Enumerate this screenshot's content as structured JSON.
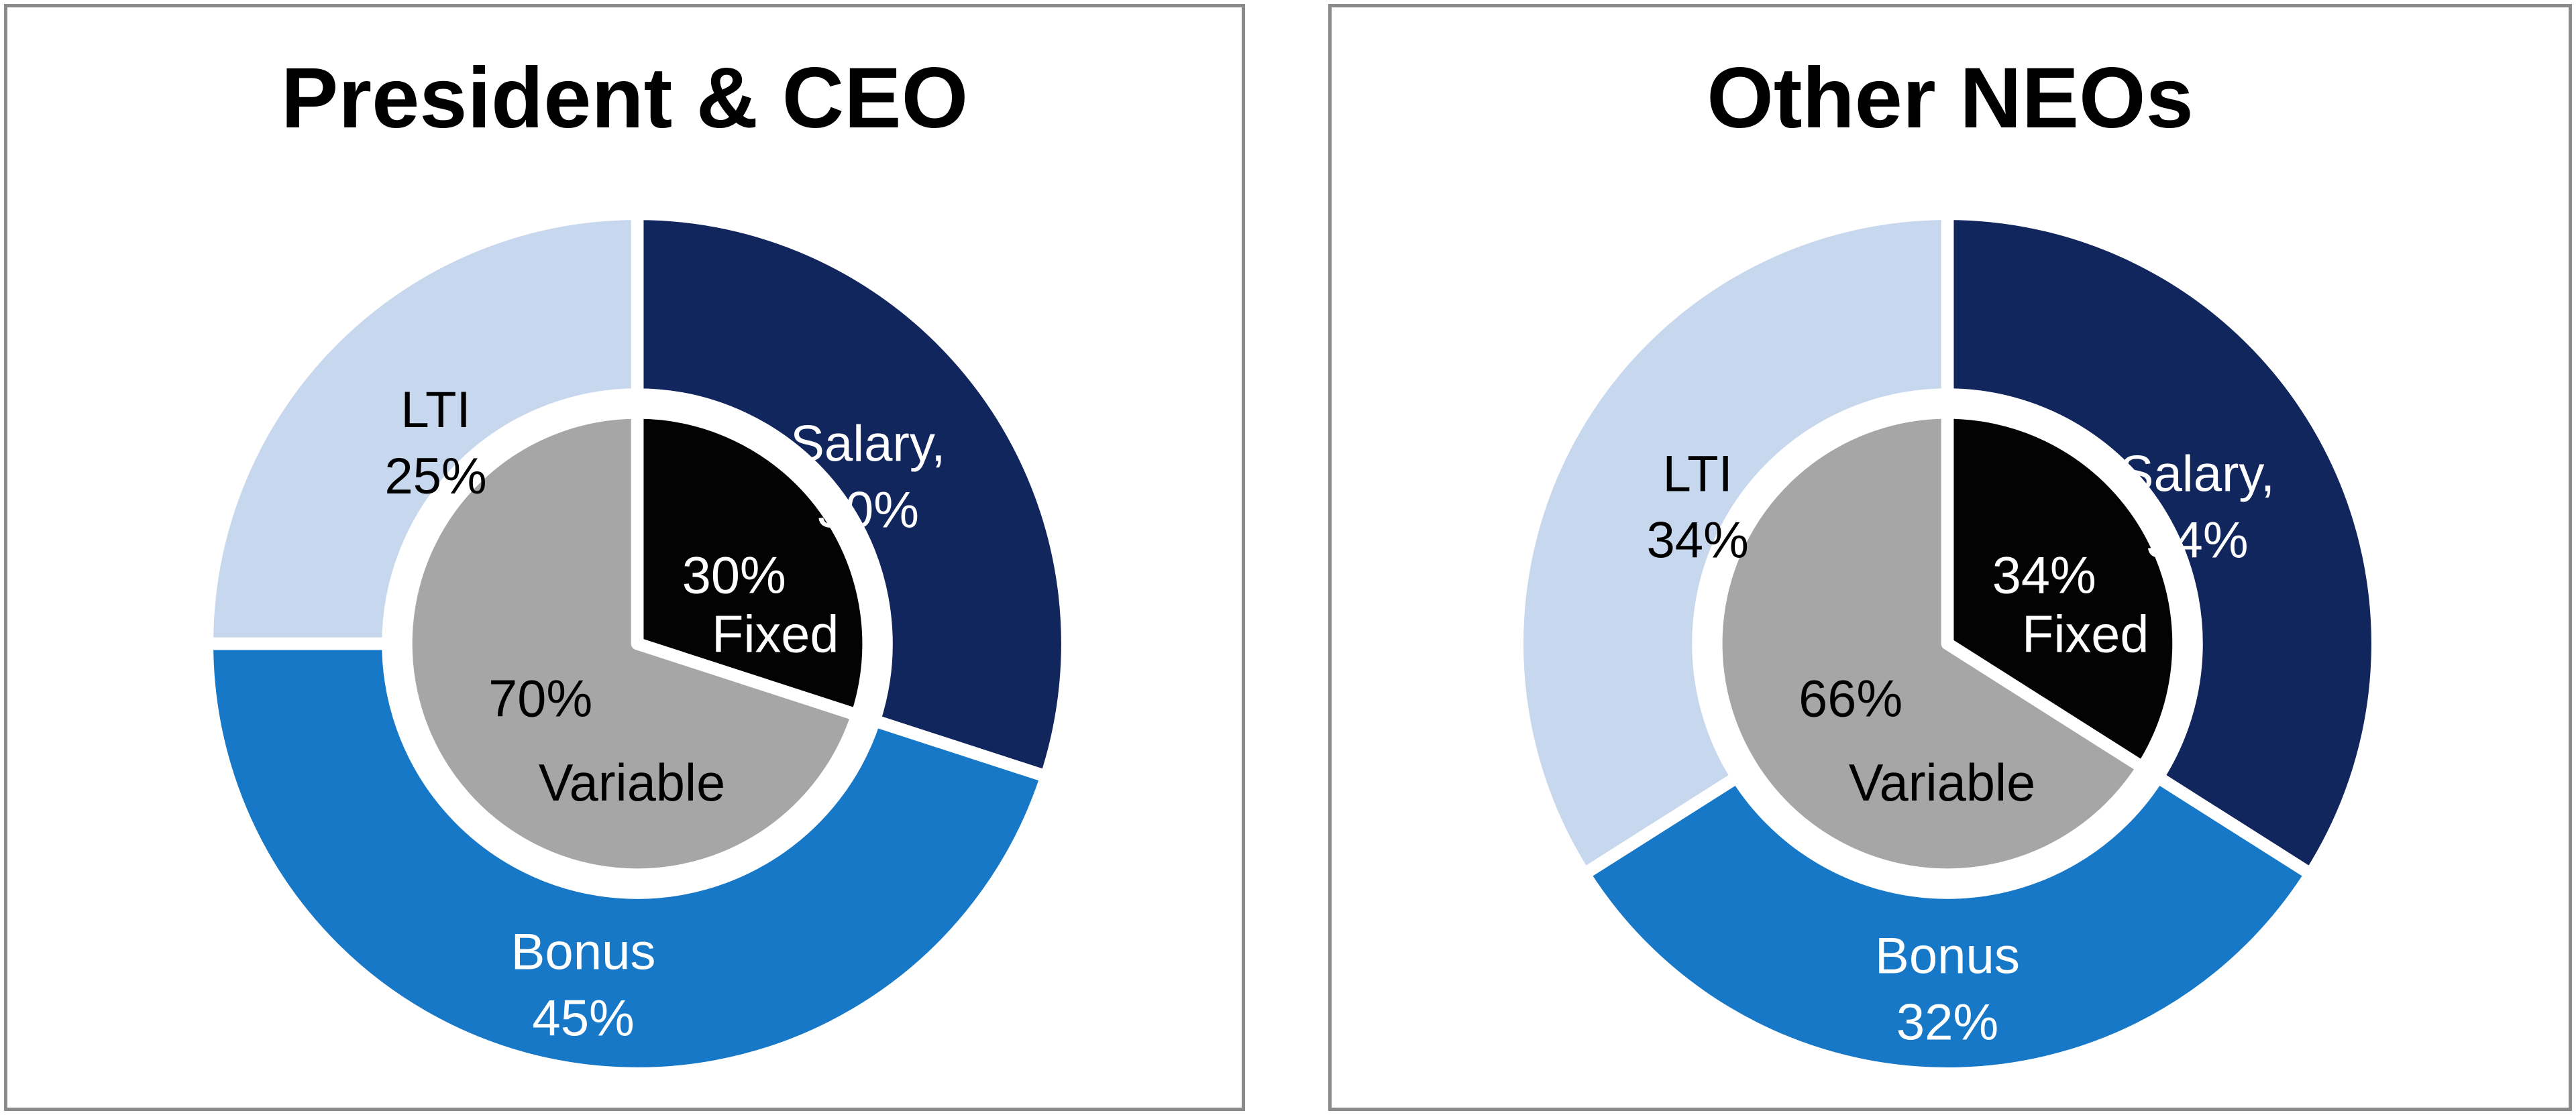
{
  "page": {
    "background_color": "#FFFFFF",
    "panel_border_color": "#8A8A8A"
  },
  "chart_data": [
    {
      "type": "pie",
      "variant": "donut_with_inner_pie",
      "title": "President & CEO",
      "legend_position": "none",
      "start_angle_deg": 0,
      "direction": "clockwise",
      "outer_ring": {
        "categories": [
          "Salary",
          "Bonus",
          "LTI"
        ],
        "values": [
          30,
          45,
          25
        ],
        "labels": [
          [
            "Salary,",
            "30%"
          ],
          [
            "Bonus",
            "45%"
          ],
          [
            "LTI",
            "25%"
          ]
        ],
        "colors": [
          "#12265E",
          "#1878C8",
          "#C7D7ED"
        ],
        "label_colors": [
          "#FFFFFF",
          "#FFFFFF",
          "#000000"
        ]
      },
      "inner_pie": {
        "categories": [
          "Fixed",
          "Variable"
        ],
        "values": [
          30,
          70
        ],
        "labels": [
          [
            "30%",
            "Fixed"
          ],
          [
            "70%",
            "Variable"
          ]
        ],
        "colors": [
          "#030303",
          "#A6A6A6"
        ],
        "label_colors": [
          "#FFFFFF",
          "#000000"
        ]
      }
    },
    {
      "type": "pie",
      "variant": "donut_with_inner_pie",
      "title": "Other NEOs",
      "legend_position": "none",
      "start_angle_deg": 0,
      "direction": "clockwise",
      "outer_ring": {
        "categories": [
          "Salary",
          "Bonus",
          "LTI"
        ],
        "values": [
          34,
          32,
          34
        ],
        "labels": [
          [
            "Salary,",
            "34%"
          ],
          [
            "Bonus",
            "32%"
          ],
          [
            "LTI",
            "34%"
          ]
        ],
        "colors": [
          "#12265E",
          "#1878C8",
          "#C7D7ED"
        ],
        "label_colors": [
          "#FFFFFF",
          "#FFFFFF",
          "#000000"
        ]
      },
      "inner_pie": {
        "categories": [
          "Fixed",
          "Variable"
        ],
        "values": [
          34,
          66
        ],
        "labels": [
          [
            "34%",
            "Fixed"
          ],
          [
            "66%",
            "Variable"
          ]
        ],
        "colors": [
          "#030303",
          "#A6A6A6"
        ],
        "label_colors": [
          "#FFFFFF",
          "#000000"
        ]
      }
    }
  ]
}
